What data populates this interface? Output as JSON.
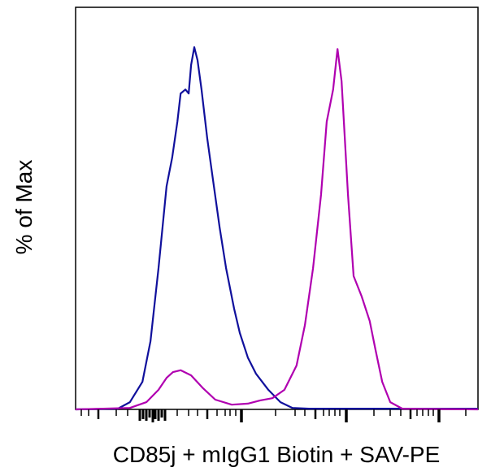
{
  "chart_data": {
    "type": "line",
    "title": "",
    "xlabel": "CD85j + mIgG1 Biotin + SAV-PE",
    "ylabel": "% of Max",
    "xlim": [
      0,
      1
    ],
    "ylim": [
      0,
      111
    ],
    "x_scale": "log (biexponential), unlabeled decades",
    "grid": false,
    "legend": "none",
    "series": [
      {
        "color": "#10109c",
        "points": [
          [
            0,
            0
          ],
          [
            0.105,
            0.2
          ],
          [
            0.135,
            2.0
          ],
          [
            0.166,
            7.6
          ],
          [
            0.186,
            18.8
          ],
          [
            0.206,
            39
          ],
          [
            0.226,
            61.6
          ],
          [
            0.24,
            69.5
          ],
          [
            0.253,
            79.4
          ],
          [
            0.261,
            87.2
          ],
          [
            0.273,
            88.3
          ],
          [
            0.281,
            87.2
          ],
          [
            0.287,
            95.1
          ],
          [
            0.295,
            100
          ],
          [
            0.303,
            96.4
          ],
          [
            0.313,
            88.3
          ],
          [
            0.327,
            74.9
          ],
          [
            0.341,
            63.7
          ],
          [
            0.358,
            50.2
          ],
          [
            0.374,
            39
          ],
          [
            0.394,
            27.8
          ],
          [
            0.408,
            21.1
          ],
          [
            0.428,
            14.3
          ],
          [
            0.448,
            9.9
          ],
          [
            0.479,
            5.4
          ],
          [
            0.509,
            2.0
          ],
          [
            0.539,
            0.4
          ],
          [
            0.58,
            0.2
          ],
          [
            1,
            0.2
          ]
        ]
      },
      {
        "color": "#b000b0",
        "points": [
          [
            0,
            0
          ],
          [
            0.135,
            0.4
          ],
          [
            0.176,
            2.0
          ],
          [
            0.206,
            5.4
          ],
          [
            0.226,
            8.7
          ],
          [
            0.242,
            10.3
          ],
          [
            0.261,
            10.8
          ],
          [
            0.287,
            9.4
          ],
          [
            0.317,
            5.8
          ],
          [
            0.347,
            2.7
          ],
          [
            0.388,
            1.3
          ],
          [
            0.428,
            1.6
          ],
          [
            0.459,
            2.5
          ],
          [
            0.489,
            3.1
          ],
          [
            0.519,
            5.4
          ],
          [
            0.549,
            12.1
          ],
          [
            0.57,
            23.3
          ],
          [
            0.59,
            39
          ],
          [
            0.61,
            59.2
          ],
          [
            0.624,
            79.4
          ],
          [
            0.64,
            88.3
          ],
          [
            0.651,
            99.5
          ],
          [
            0.661,
            90.6
          ],
          [
            0.677,
            59.2
          ],
          [
            0.691,
            36.8
          ],
          [
            0.711,
            31.2
          ],
          [
            0.731,
            24.4
          ],
          [
            0.745,
            16.6
          ],
          [
            0.762,
            7.6
          ],
          [
            0.782,
            2.0
          ],
          [
            0.812,
            0.2
          ],
          [
            1,
            0
          ]
        ]
      }
    ]
  }
}
